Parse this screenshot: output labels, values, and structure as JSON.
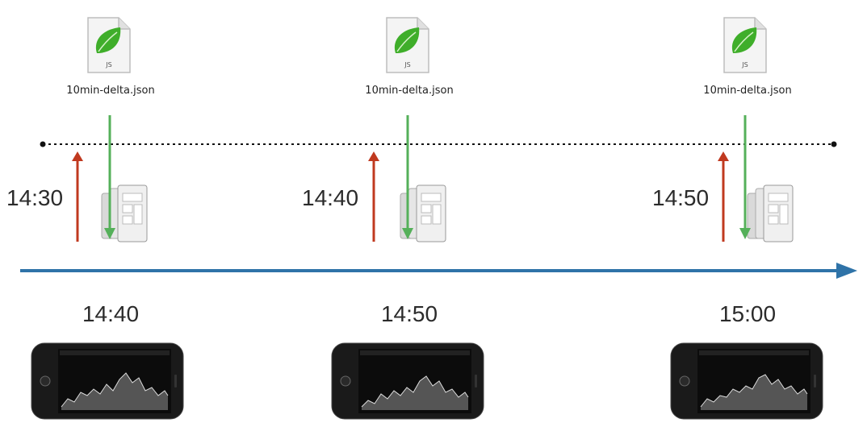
{
  "columns": [
    {
      "file_name": "10min-delta.json",
      "file_badge": "JS",
      "request_time": "14:30",
      "display_time": "14:40"
    },
    {
      "file_name": "10min-delta.json",
      "file_badge": "JS",
      "request_time": "14:40",
      "display_time": "14:50"
    },
    {
      "file_name": "10min-delta.json",
      "file_badge": "JS",
      "request_time": "14:50",
      "display_time": "15:00"
    }
  ],
  "colors": {
    "request_arrow": "#c0391f",
    "delivery_arrow": "#55b05a",
    "time_arrow": "#2f73a8",
    "leaf": "#3fae2a",
    "dotted_line": "#111111"
  },
  "icons": {
    "file": "js-leaf-file-icon",
    "stack": "database-stack-icon",
    "device": "iphone-landscape-chart-icon"
  }
}
